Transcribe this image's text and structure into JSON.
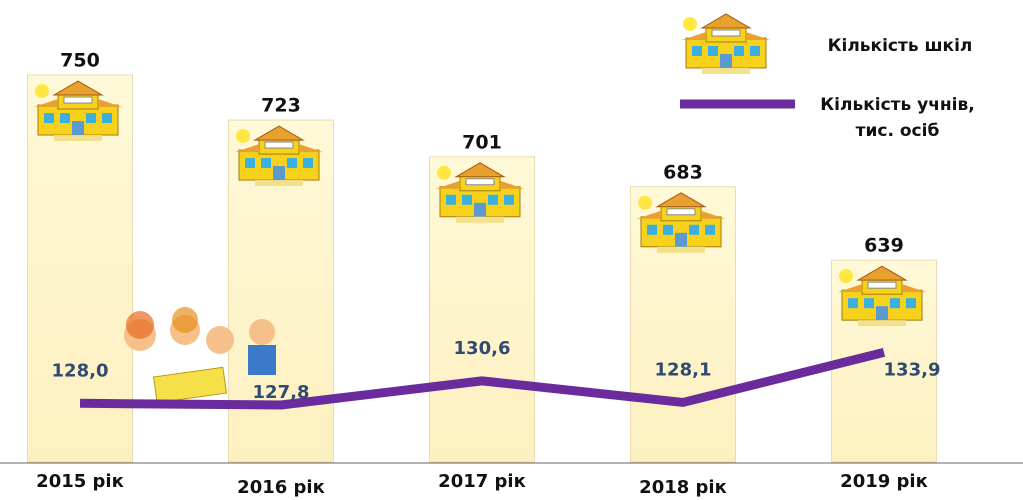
{
  "chart_data": {
    "type": "bar",
    "categories": [
      "2015 рік",
      "2016 рік",
      "2017 рік",
      "2018 рік",
      "2019 рік"
    ],
    "ylim": [
      518,
      783
    ],
    "y2lim": [
      121.2,
      172.4
    ],
    "series": [
      {
        "name": "Кількість шкіл",
        "type": "bar",
        "color": "#fbf3c8",
        "values": [
          750,
          723,
          701,
          683,
          639
        ]
      },
      {
        "name": "Кількість учнів, тис. осіб",
        "type": "line",
        "axis": "y2",
        "color": "#6a2c9c",
        "values": [
          128.0,
          127.8,
          130.6,
          128.1,
          133.9
        ],
        "value_labels": [
          "128,0",
          "127,8",
          "130,6",
          "128,1",
          "133,9"
        ]
      }
    ]
  }
}
